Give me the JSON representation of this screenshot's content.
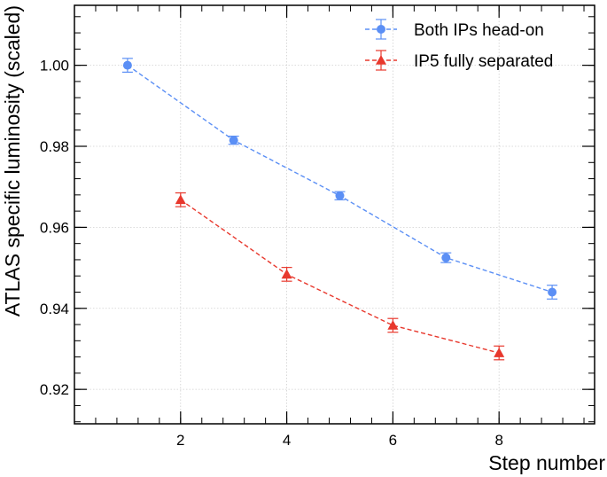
{
  "chart_data": {
    "type": "line",
    "title": "",
    "xlabel": "Step number",
    "ylabel": "ATLAS specific luminosity (scaled)",
    "xlim": [
      0.0,
      9.8
    ],
    "ylim": [
      0.9115,
      1.0148
    ],
    "xticks": [
      2,
      4,
      6,
      8
    ],
    "yticks": [
      0.92,
      0.94,
      0.96,
      0.98,
      1.0
    ],
    "ytick_labels": [
      "0.92",
      "0.94",
      "0.96",
      "0.98",
      "1.00"
    ],
    "grid": true,
    "legend_position": "top-right",
    "series": [
      {
        "name": "Both IPs head-on",
        "color": "#5b8ff5",
        "marker": "circle",
        "linestyle": "dashed",
        "x": [
          1,
          3,
          5,
          7,
          9
        ],
        "y": [
          1.0,
          0.9815,
          0.9678,
          0.9525,
          0.944
        ],
        "yerr": [
          0.0017,
          0.001,
          0.001,
          0.0012,
          0.0017
        ]
      },
      {
        "name": "IP5 fully separated",
        "color": "#e8382d",
        "marker": "triangle",
        "linestyle": "dashed",
        "x": [
          2,
          4,
          6,
          8
        ],
        "y": [
          0.9668,
          0.9484,
          0.9358,
          0.929
        ],
        "yerr": [
          0.0017,
          0.0017,
          0.0017,
          0.0017
        ]
      }
    ]
  }
}
